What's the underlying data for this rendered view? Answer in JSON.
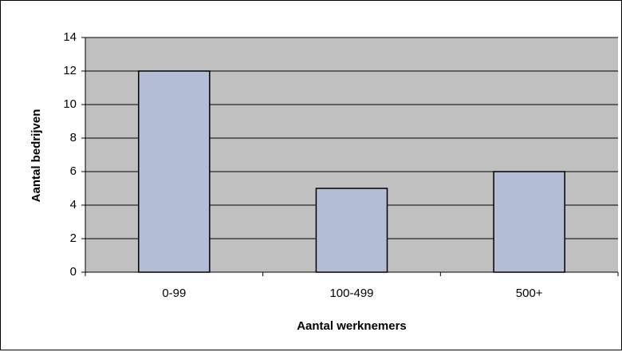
{
  "chart_data": {
    "type": "bar",
    "x_label": "Aantal werknemers",
    "y_label": "Aantal bedrijven",
    "categories": [
      "0-99",
      "100-499",
      "500+"
    ],
    "values": [
      12,
      5,
      6
    ],
    "color": "#b3bdd6",
    "plot_background": "#c0c0c0",
    "ylim": [
      0,
      14
    ],
    "yticks": [
      0,
      2,
      4,
      6,
      8,
      10,
      12,
      14
    ],
    "grid": true
  }
}
